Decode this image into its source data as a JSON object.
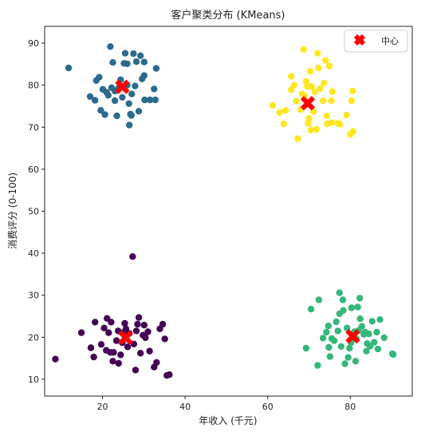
{
  "chart_data": {
    "type": "scatter",
    "title": "客户聚类分布 (KMeans)",
    "xlabel": "年收入 (千元)",
    "ylabel": "消费评分 (0-100)",
    "xlim": [
      6,
      95
    ],
    "ylim": [
      6,
      94
    ],
    "xticks": [
      20,
      40,
      60,
      80
    ],
    "yticks": [
      10,
      20,
      30,
      40,
      50,
      60,
      70,
      80,
      90
    ],
    "grid": false,
    "legend": {
      "position": "top-right",
      "entries": [
        "中心"
      ]
    },
    "series": [
      {
        "color": "#2c6b8e",
        "points": [
          [
            11.8,
            84.1
          ],
          [
            17,
            77.3
          ],
          [
            18.2,
            76.4
          ],
          [
            18.5,
            81.1
          ],
          [
            19.2,
            81.9
          ],
          [
            19.6,
            74
          ],
          [
            20.1,
            79
          ],
          [
            20.6,
            73
          ],
          [
            21,
            78.3
          ],
          [
            21.4,
            77.6
          ],
          [
            21.9,
            89.2
          ],
          [
            22.2,
            79.4
          ],
          [
            22.5,
            85.4
          ],
          [
            23,
            78.6
          ],
          [
            23,
            76.3
          ],
          [
            23.5,
            72.7
          ],
          [
            23.9,
            79.3
          ],
          [
            24.4,
            81.3
          ],
          [
            24.8,
            77.1
          ],
          [
            25.2,
            85.2
          ],
          [
            25.5,
            87.6
          ],
          [
            26,
            85.1
          ],
          [
            26,
            80
          ],
          [
            26.4,
            75.6
          ],
          [
            26.5,
            70.5
          ],
          [
            26.8,
            73.1
          ],
          [
            27,
            72.8
          ],
          [
            27.1,
            77.9
          ],
          [
            27.5,
            87.5
          ],
          [
            27.9,
            79.8
          ],
          [
            28.2,
            85.6
          ],
          [
            28.8,
            73.8
          ],
          [
            29.2,
            87
          ],
          [
            29.6,
            81.5
          ],
          [
            30.1,
            82.3
          ],
          [
            30.1,
            85.5
          ],
          [
            30.2,
            76.5
          ],
          [
            31.5,
            76.5
          ],
          [
            32.5,
            79.1
          ],
          [
            32.8,
            76.5
          ],
          [
            33,
            84
          ]
        ]
      },
      {
        "color": "#fde725",
        "points": [
          [
            61.2,
            75.2
          ],
          [
            62.9,
            73.5
          ],
          [
            63.9,
            70.8
          ],
          [
            64.3,
            74
          ],
          [
            65.7,
            78.9
          ],
          [
            65.7,
            82.1
          ],
          [
            66.4,
            80
          ],
          [
            66.9,
            76.2
          ],
          [
            67.3,
            67.3
          ],
          [
            68,
            74.2
          ],
          [
            68.4,
            77.9
          ],
          [
            68.7,
            88.5
          ],
          [
            69,
            77.4
          ],
          [
            69.3,
            80.9
          ],
          [
            69.4,
            75.4
          ],
          [
            69.6,
            79.7
          ],
          [
            69.8,
            70.9
          ],
          [
            70,
            72.1
          ],
          [
            70.3,
            83.3
          ],
          [
            70.5,
            69.3
          ],
          [
            70.6,
            79.7
          ],
          [
            71.1,
            73.7
          ],
          [
            71.4,
            78.4
          ],
          [
            71.8,
            69.5
          ],
          [
            72.1,
            87.6
          ],
          [
            72.3,
            84.1
          ],
          [
            72.7,
            79.2
          ],
          [
            73.4,
            76.3
          ],
          [
            73.6,
            80.5
          ],
          [
            74,
            85.9
          ],
          [
            74.3,
            72.7
          ],
          [
            74.4,
            70.8
          ],
          [
            74.9,
            84.6
          ],
          [
            75.4,
            76.3
          ],
          [
            75.5,
            71.1
          ],
          [
            75.7,
            78.5
          ],
          [
            77,
            70.9
          ],
          [
            77.5,
            70.7
          ],
          [
            79.1,
            72.9
          ],
          [
            80,
            68.3
          ],
          [
            80.3,
            76.3
          ],
          [
            80.6,
            78.6
          ],
          [
            80.7,
            69
          ]
        ]
      },
      {
        "color": "#440154",
        "points": [
          [
            8.6,
            14.8
          ],
          [
            14.9,
            21.1
          ],
          [
            17.2,
            17.5
          ],
          [
            17.9,
            15.3
          ],
          [
            18.2,
            23.6
          ],
          [
            19.7,
            18.3
          ],
          [
            20.4,
            22.2
          ],
          [
            20.9,
            16.9
          ],
          [
            21.1,
            24.5
          ],
          [
            21.5,
            21.1
          ],
          [
            21.9,
            16.4
          ],
          [
            22.1,
            23.6
          ],
          [
            22.5,
            14.3
          ],
          [
            22.7,
            16.4
          ],
          [
            23.4,
            19.2
          ],
          [
            23.8,
            21.5
          ],
          [
            23.9,
            13.8
          ],
          [
            24.4,
            15.8
          ],
          [
            24.8,
            18.7
          ],
          [
            25.2,
            21.2
          ],
          [
            25.4,
            23.3
          ],
          [
            25.7,
            22
          ],
          [
            26.1,
            17.7
          ],
          [
            26.5,
            20.9
          ],
          [
            27.3,
            39.2
          ],
          [
            27.6,
            18.4
          ],
          [
            28,
            12.2
          ],
          [
            28.2,
            21.5
          ],
          [
            28.5,
            23.1
          ],
          [
            28.8,
            24.7
          ],
          [
            29.2,
            16.2
          ],
          [
            29.8,
            20.5
          ],
          [
            30.1,
            22.9
          ],
          [
            30.4,
            19.9
          ],
          [
            31,
            21.3
          ],
          [
            31.4,
            16.7
          ],
          [
            32.5,
            12.9
          ],
          [
            33.1,
            14
          ],
          [
            33.9,
            22
          ],
          [
            34.6,
            23.1
          ],
          [
            35.1,
            19.6
          ],
          [
            35.6,
            10.9
          ],
          [
            36.2,
            11.1
          ]
        ]
      },
      {
        "color": "#35b779",
        "points": [
          [
            69.3,
            17.4
          ],
          [
            70.5,
            26.7
          ],
          [
            72.1,
            13.3
          ],
          [
            72.4,
            28.9
          ],
          [
            73.4,
            19.8
          ],
          [
            74.2,
            21.2
          ],
          [
            74.7,
            22.7
          ],
          [
            74.8,
            17.6
          ],
          [
            75.1,
            15.4
          ],
          [
            75.5,
            19.7
          ],
          [
            76.1,
            19.2
          ],
          [
            76.6,
            23.7
          ],
          [
            77,
            21.5
          ],
          [
            77.4,
            25.6
          ],
          [
            77.8,
            17.8
          ],
          [
            78.3,
            26.4
          ],
          [
            78.7,
            13.7
          ],
          [
            79.2,
            22.2
          ],
          [
            79.5,
            15.2
          ],
          [
            79.8,
            17.4
          ],
          [
            80.2,
            18.7
          ],
          [
            80.6,
            20.1
          ],
          [
            81,
            21.3
          ],
          [
            81.3,
            14.3
          ],
          [
            81.5,
            19.6
          ],
          [
            82,
            21.6
          ],
          [
            82.4,
            24.4
          ],
          [
            82.8,
            22.6
          ],
          [
            83.3,
            20.7
          ],
          [
            83.6,
            21.2
          ],
          [
            83.9,
            16.7
          ],
          [
            84.1,
            18.5
          ],
          [
            84.5,
            20.8
          ],
          [
            84.8,
            17.9
          ],
          [
            85.3,
            23.8
          ],
          [
            85.8,
            18.8
          ],
          [
            86.4,
            21.2
          ],
          [
            86.7,
            17.2
          ],
          [
            87.2,
            24.2
          ],
          [
            88.2,
            19.9
          ],
          [
            90.2,
            16.1
          ],
          [
            90.4,
            15.9
          ],
          [
            82.3,
            29.3
          ],
          [
            81.8,
            27.2
          ],
          [
            80.3,
            27
          ],
          [
            77.4,
            30.6
          ],
          [
            78.2,
            28.9
          ]
        ]
      }
    ],
    "centers": {
      "name": "中心",
      "color": "#ff0000",
      "points": [
        [
          24.8,
          79.6
        ],
        [
          69.7,
          75.7
        ],
        [
          25.6,
          19.9
        ],
        [
          80.6,
          20.2
        ]
      ]
    }
  }
}
